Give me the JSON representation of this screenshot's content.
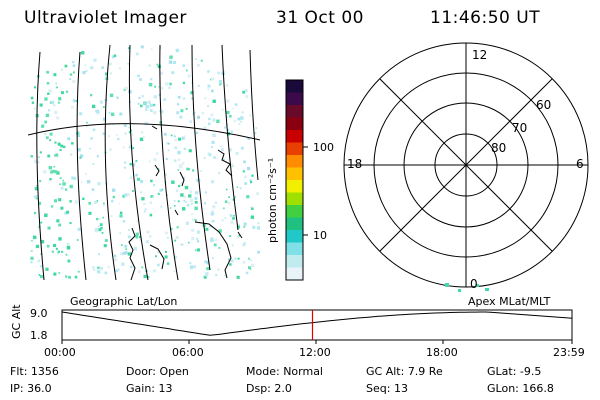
{
  "header": {
    "instrument": "Ultraviolet Imager",
    "date": "31 Oct 00",
    "time": "11:46:50 UT"
  },
  "colorbar": {
    "unit_label": "photon cm⁻²s⁻¹",
    "ticks": [
      "100",
      "10"
    ],
    "colors": [
      "#1a0a3a",
      "#3a0a4a",
      "#6a0a2a",
      "#8a0010",
      "#c80000",
      "#e84000",
      "#ff8c00",
      "#ffc000",
      "#f0f000",
      "#a0e000",
      "#40d040",
      "#20c080",
      "#20c8c8",
      "#80e0e8",
      "#c0ecf0",
      "#e8f4f8"
    ]
  },
  "polar_plot": {
    "mlt_labels": {
      "top": "12",
      "left": "18",
      "right": "6",
      "bottom": "0"
    },
    "lat_labels": [
      "60",
      "70",
      "80"
    ]
  },
  "map_labels": {
    "left": "Geographic Lat/Lon",
    "right": "Apex MLat/MLT"
  },
  "timeline": {
    "axis_label": "GC Alt",
    "y_ticks": [
      "9.0",
      "1.8"
    ],
    "x_ticks": [
      "00:00",
      "06:00",
      "12:00",
      "18:00",
      "23:59"
    ],
    "current_time_marker": "11:46:50"
  },
  "info": {
    "row1": [
      {
        "label": "Flt:",
        "value": "1356"
      },
      {
        "label": "Door:",
        "value": "Open"
      },
      {
        "label": "Mode:",
        "value": "Normal"
      },
      {
        "label": "GC Alt:",
        "value": "7.9 Re"
      },
      {
        "label": "GLat:",
        "value": "-9.5"
      }
    ],
    "row2": [
      {
        "label": "IP:",
        "value": "36.0"
      },
      {
        "label": "Gain:",
        "value": "13"
      },
      {
        "label": "Dsp:",
        "value": "2.0"
      },
      {
        "label": "Seq:",
        "value": "13"
      },
      {
        "label": "GLon:",
        "value": "166.8"
      }
    ]
  }
}
